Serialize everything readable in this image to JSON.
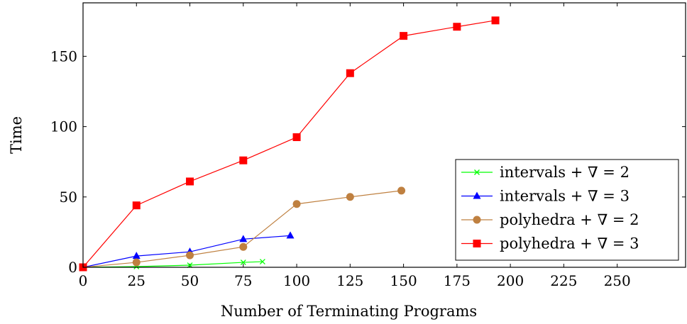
{
  "chart_data": {
    "type": "line",
    "xlabel": "Number of Terminating Programs",
    "ylabel": "Time",
    "xlim": [
      0,
      282
    ],
    "ylim": [
      0,
      188
    ],
    "x_ticks": [
      0,
      25,
      50,
      75,
      100,
      125,
      150,
      175,
      200,
      225,
      250
    ],
    "y_ticks": [
      0,
      50,
      100,
      150
    ],
    "grid": false,
    "legend_position": "bottom-right",
    "series": [
      {
        "name": "intervals + ∇ = 2",
        "color": "#00ff00",
        "marker": "x",
        "points": [
          [
            0,
            0
          ],
          [
            25,
            0.5
          ],
          [
            50,
            1.5
          ],
          [
            75,
            3.5
          ],
          [
            84,
            4
          ]
        ]
      },
      {
        "name": "intervals + ∇ = 3",
        "color": "#0000ff",
        "marker": "triangle",
        "points": [
          [
            0,
            0
          ],
          [
            25,
            8
          ],
          [
            50,
            11
          ],
          [
            75,
            20
          ],
          [
            97,
            22.5
          ]
        ]
      },
      {
        "name": "polyhedra + ∇ = 2",
        "color": "#bf8040",
        "marker": "circle",
        "points": [
          [
            0,
            0
          ],
          [
            25,
            3.5
          ],
          [
            50,
            8.5
          ],
          [
            75,
            14.5
          ],
          [
            100,
            45
          ],
          [
            125,
            50
          ],
          [
            149,
            54.5
          ]
        ]
      },
      {
        "name": "polyhedra + ∇ = 3",
        "color": "#ff0000",
        "marker": "square",
        "points": [
          [
            0,
            0
          ],
          [
            25,
            44
          ],
          [
            50,
            61
          ],
          [
            75,
            76
          ],
          [
            100,
            92.5
          ],
          [
            125,
            138
          ],
          [
            150,
            164.5
          ],
          [
            175,
            171
          ],
          [
            193,
            175.5
          ]
        ]
      }
    ]
  }
}
